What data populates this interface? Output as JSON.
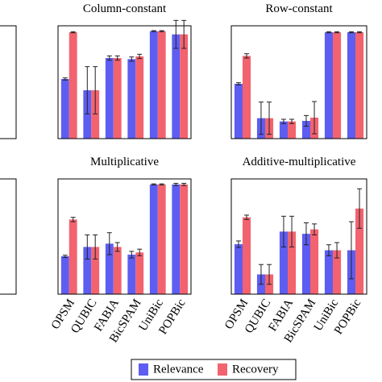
{
  "chart_data": [
    {
      "type": "bar",
      "title": "Column-constant",
      "ylim": [
        0,
        1.05
      ],
      "series": [
        {
          "values": [
            0.555,
            0.45,
            0.75,
            0.74,
            1.0,
            0.97
          ],
          "errors": [
            0.01,
            0.22,
            0.02,
            0.02,
            0.005,
            0.13
          ]
        },
        {
          "values": [
            0.99,
            0.45,
            0.75,
            0.765,
            1.0,
            0.97
          ],
          "errors": [
            0.005,
            0.22,
            0.02,
            0.02,
            0.005,
            0.13
          ]
        }
      ]
    },
    {
      "type": "bar",
      "title": "Row-constant",
      "ylim": [
        0,
        1.05
      ],
      "series": [
        {
          "values": [
            0.51,
            0.19,
            0.16,
            0.165,
            0.99,
            0.99
          ],
          "errors": [
            0.01,
            0.15,
            0.02,
            0.05,
            0.005,
            0.005
          ]
        },
        {
          "values": [
            0.77,
            0.19,
            0.16,
            0.195,
            0.99,
            0.99
          ],
          "errors": [
            0.02,
            0.15,
            0.02,
            0.15,
            0.005,
            0.005
          ]
        }
      ]
    },
    {
      "type": "bar",
      "title": "Multiplicative",
      "ylim": [
        0,
        1.05
      ],
      "categories": [
        "OPSM",
        "QUBIC",
        "FABIA",
        "BicSPAM",
        "UniBic",
        "POPBic"
      ],
      "series": [
        {
          "values": [
            0.345,
            0.43,
            0.46,
            0.36,
            1.0,
            1.0
          ],
          "errors": [
            0.01,
            0.11,
            0.1,
            0.03,
            0.005,
            0.01
          ]
        },
        {
          "values": [
            0.68,
            0.43,
            0.43,
            0.38,
            1.0,
            1.0
          ],
          "errors": [
            0.02,
            0.11,
            0.04,
            0.03,
            0.005,
            0.01
          ]
        }
      ]
    },
    {
      "type": "bar",
      "title": "Additive-multiplicative",
      "ylim": [
        0,
        1.05
      ],
      "categories": [
        "OPSM",
        "QUBIC",
        "FABIA",
        "BicSPAM",
        "UniBic",
        "POPBic"
      ],
      "series": [
        {
          "values": [
            0.455,
            0.18,
            0.57,
            0.55,
            0.4,
            0.4
          ],
          "errors": [
            0.03,
            0.09,
            0.14,
            0.1,
            0.05,
            0.26
          ]
        },
        {
          "values": [
            0.7,
            0.18,
            0.57,
            0.59,
            0.4,
            0.78
          ],
          "errors": [
            0.02,
            0.09,
            0.14,
            0.05,
            0.07,
            0.18
          ]
        }
      ]
    }
  ],
  "legend": {
    "items": [
      {
        "name": "Relevance",
        "color": "#5d5df2"
      },
      {
        "name": "Recovery",
        "color": "#f2636f"
      }
    ]
  }
}
